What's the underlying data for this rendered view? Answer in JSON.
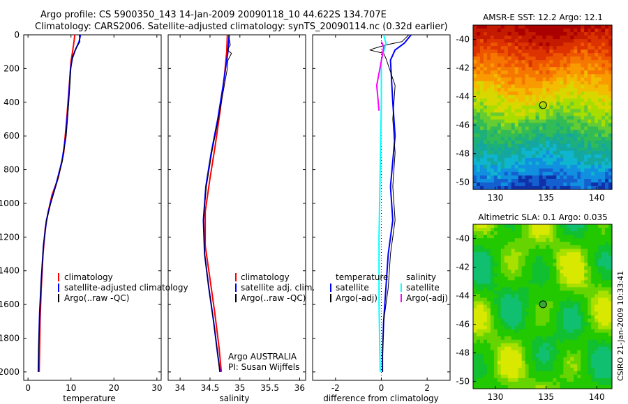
{
  "header": {
    "line1": "Argo profile: CS 5900350_143 14-Jan-2009 20090118_10 44.622S 134.707E",
    "line2": "Climatology: CARS2006. Satellite-adjusted climatology: synTS_20090114.nc (0.32d earlier)"
  },
  "footer_vertical": "CSIRO 21-Jan-2009 10:33:41",
  "colors": {
    "climatology": "#ff0000",
    "satellite": "#0000ff",
    "argo": "#000000",
    "salinity_sat": "#00ffff",
    "salinity_argo": "#ff00ff"
  },
  "chart_data": [
    {
      "type": "line",
      "id": "temperature",
      "xlabel": "temperature",
      "ylabel": "",
      "xlim": [
        -1,
        31
      ],
      "ylim": [
        2050,
        0
      ],
      "xticks": [
        0,
        10,
        20,
        30
      ],
      "yticks": [
        0,
        200,
        400,
        600,
        800,
        1000,
        1200,
        1400,
        1600,
        1800,
        2000
      ],
      "legend": [
        "climatology",
        "satellite-adjusted climatology",
        "Argo(..raw -QC)"
      ],
      "series": [
        {
          "name": "climatology",
          "color": "#ff0000",
          "width": 2,
          "points": [
            [
              10.9,
              0
            ],
            [
              10.6,
              60
            ],
            [
              10.3,
              110
            ],
            [
              10.0,
              160
            ],
            [
              9.6,
              300
            ],
            [
              9.0,
              500
            ],
            [
              8.3,
              700
            ],
            [
              7.0,
              850
            ],
            [
              5.6,
              950
            ],
            [
              4.7,
              1050
            ],
            [
              4.0,
              1150
            ],
            [
              3.5,
              1300
            ],
            [
              3.1,
              1500
            ],
            [
              2.8,
              1700
            ],
            [
              2.6,
              2000
            ]
          ]
        },
        {
          "name": "satellite",
          "color": "#0000ff",
          "width": 2,
          "points": [
            [
              12.2,
              0
            ],
            [
              11.9,
              40
            ],
            [
              11.0,
              90
            ],
            [
              10.3,
              140
            ],
            [
              9.9,
              200
            ],
            [
              9.4,
              400
            ],
            [
              8.8,
              600
            ],
            [
              7.9,
              750
            ],
            [
              6.6,
              880
            ],
            [
              5.2,
              1000
            ],
            [
              4.3,
              1100
            ],
            [
              3.6,
              1250
            ],
            [
              3.1,
              1450
            ],
            [
              2.7,
              1650
            ],
            [
              2.5,
              1850
            ],
            [
              2.4,
              2000
            ]
          ]
        },
        {
          "name": "argo",
          "color": "#000000",
          "width": 1,
          "points": [
            [
              11.9,
              0
            ],
            [
              12.1,
              40
            ],
            [
              11.1,
              85
            ],
            [
              10.3,
              130
            ],
            [
              10.0,
              200
            ],
            [
              9.5,
              400
            ],
            [
              8.9,
              600
            ],
            [
              8.0,
              750
            ],
            [
              6.7,
              880
            ],
            [
              5.3,
              1000
            ],
            [
              4.3,
              1100
            ],
            [
              3.6,
              1250
            ],
            [
              3.1,
              1450
            ],
            [
              2.7,
              1650
            ],
            [
              2.5,
              1850
            ],
            [
              2.4,
              2000
            ]
          ]
        }
      ]
    },
    {
      "type": "line",
      "id": "salinity",
      "xlabel": "salinity",
      "xlim": [
        33.8,
        36.1
      ],
      "ylim": [
        2050,
        0
      ],
      "xticks": [
        34,
        34.5,
        35,
        35.5,
        36
      ],
      "xticklabels": [
        "34",
        "34.5",
        "35",
        "35.5",
        "36"
      ],
      "legend": [
        "climatology",
        "satellite adj. clim.",
        "Argo(..raw -QC)"
      ],
      "annotation": [
        "Argo AUSTRALIA",
        "PI: Susan Wijffels"
      ],
      "series": [
        {
          "name": "climatology",
          "color": "#ff0000",
          "width": 2,
          "points": [
            [
              34.79,
              0
            ],
            [
              34.78,
              100
            ],
            [
              34.74,
              250
            ],
            [
              34.67,
              450
            ],
            [
              34.59,
              650
            ],
            [
              34.5,
              850
            ],
            [
              34.42,
              1050
            ],
            [
              34.42,
              1250
            ],
            [
              34.5,
              1450
            ],
            [
              34.58,
              1650
            ],
            [
              34.65,
              1850
            ],
            [
              34.69,
              2000
            ]
          ]
        },
        {
          "name": "satellite",
          "color": "#0000ff",
          "width": 2,
          "points": [
            [
              34.82,
              0
            ],
            [
              34.8,
              100
            ],
            [
              34.72,
              300
            ],
            [
              34.63,
              500
            ],
            [
              34.52,
              700
            ],
            [
              34.43,
              900
            ],
            [
              34.39,
              1100
            ],
            [
              34.41,
              1300
            ],
            [
              34.48,
              1500
            ],
            [
              34.56,
              1700
            ],
            [
              34.63,
              1900
            ],
            [
              34.67,
              2000
            ]
          ]
        },
        {
          "name": "argo",
          "color": "#000000",
          "width": 1,
          "points": [
            [
              34.81,
              0
            ],
            [
              34.84,
              60
            ],
            [
              34.79,
              90
            ],
            [
              34.86,
              110
            ],
            [
              34.8,
              150
            ],
            [
              34.79,
              200
            ],
            [
              34.74,
              300
            ],
            [
              34.64,
              500
            ],
            [
              34.53,
              700
            ],
            [
              34.44,
              900
            ],
            [
              34.39,
              1100
            ],
            [
              34.41,
              1300
            ],
            [
              34.48,
              1500
            ],
            [
              34.56,
              1700
            ],
            [
              34.63,
              1900
            ],
            [
              34.66,
              2000
            ]
          ]
        }
      ]
    },
    {
      "type": "line",
      "id": "difference",
      "xlabel": "difference from climatology",
      "xlim": [
        -3,
        3
      ],
      "ylim": [
        2050,
        0
      ],
      "xticks": [
        -2,
        0,
        2
      ],
      "xticklabels": [
        "-2",
        "0",
        "2"
      ],
      "legend_left": [
        "temperature",
        "satellite",
        "Argo(-adj)"
      ],
      "legend_right": [
        "salinity",
        "satellite",
        "Argo(-adj)"
      ],
      "series": [
        {
          "name": "temperature satellite",
          "color": "#0000ff",
          "width": 2,
          "points": [
            [
              1.3,
              0
            ],
            [
              1.0,
              50
            ],
            [
              0.6,
              90
            ],
            [
              0.4,
              150
            ],
            [
              0.5,
              400
            ],
            [
              0.6,
              600
            ],
            [
              0.4,
              900
            ],
            [
              0.5,
              1100
            ],
            [
              0.3,
              1300
            ],
            [
              0.2,
              1500
            ],
            [
              0.1,
              1700
            ],
            [
              0.05,
              1900
            ],
            [
              0.05,
              2000
            ]
          ]
        },
        {
          "name": "temperature argo",
          "color": "#000000",
          "width": 1,
          "points": [
            [
              1.2,
              0
            ],
            [
              0.9,
              40
            ],
            [
              0.2,
              60
            ],
            [
              -0.3,
              80
            ],
            [
              -0.5,
              90
            ],
            [
              0.1,
              110
            ],
            [
              0.2,
              140
            ],
            [
              0.6,
              300
            ],
            [
              0.5,
              500
            ],
            [
              0.6,
              700
            ],
            [
              0.5,
              900
            ],
            [
              0.6,
              1100
            ],
            [
              0.4,
              1300
            ],
            [
              0.3,
              1500
            ],
            [
              0.1,
              1700
            ],
            [
              0.05,
              1900
            ],
            [
              0.05,
              2000
            ]
          ]
        },
        {
          "name": "salinity satellite",
          "color": "#00ffff",
          "width": 2,
          "points": [
            [
              0.1,
              0
            ],
            [
              0.2,
              50
            ],
            [
              0.0,
              150
            ],
            [
              0.0,
              400
            ],
            [
              -0.05,
              800
            ],
            [
              -0.1,
              1200
            ],
            [
              -0.1,
              1600
            ],
            [
              -0.05,
              2000
            ]
          ]
        },
        {
          "name": "salinity argo",
          "color": "#ff00ff",
          "width": 2,
          "points": [
            [
              0.0,
              40
            ],
            [
              0.1,
              70
            ],
            [
              0.05,
              120
            ],
            [
              -0.2,
              300
            ],
            [
              -0.1,
              450
            ]
          ]
        }
      ]
    },
    {
      "type": "heatmap",
      "id": "sst_map",
      "title": "AMSR-E SST: 12.2 Argo: 12.1",
      "xlim": [
        127.8,
        141.5
      ],
      "ylim": [
        -50.5,
        -39
      ],
      "xticks": [
        130,
        135,
        140
      ],
      "yticks": [
        -40,
        -42,
        -44,
        -46,
        -48,
        -50
      ],
      "marker": [
        134.7,
        -44.6
      ]
    },
    {
      "type": "heatmap",
      "id": "sla_map",
      "title": "Altimetric SLA: 0.1 Argo: 0.035",
      "xlim": [
        127.8,
        141.5
      ],
      "ylim": [
        -50.5,
        -39
      ],
      "xticks": [
        130,
        135,
        140
      ],
      "yticks": [
        -40,
        -42,
        -44,
        -46,
        -48,
        -50
      ],
      "marker": [
        134.7,
        -44.6
      ]
    }
  ]
}
